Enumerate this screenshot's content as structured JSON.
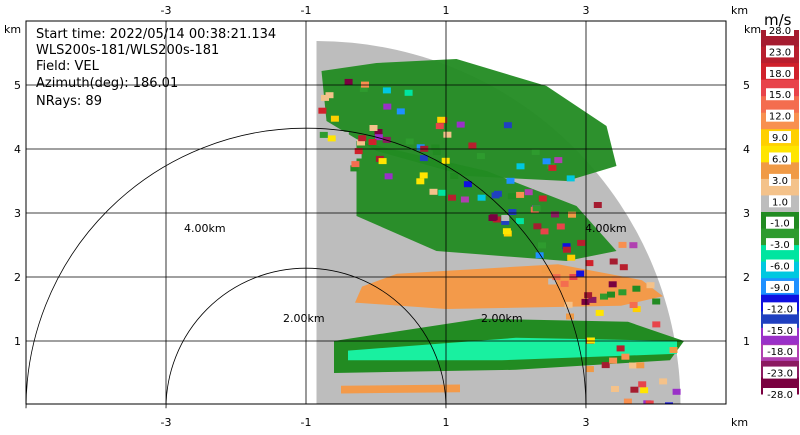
{
  "chart_data": {
    "type": "heatmap",
    "description_lines": [
      "Start time: 2022/05/14 00:38:21.134",
      "WLS200s-181/WLS200s-181",
      "Field: VEL",
      "Azimuth(deg): 186.01",
      "NRays: 89"
    ],
    "axis_unit_label": "km",
    "x_ticks": [
      -3,
      -1,
      1,
      3
    ],
    "y_ticks": [
      1,
      2,
      3,
      4,
      5
    ],
    "xlim": [
      -5.1,
      5.2
    ],
    "ylim": [
      0,
      6.0
    ],
    "grid": true,
    "range_rings": [
      {
        "radius_km": 2.0,
        "label": "2.00km"
      },
      {
        "radius_km": 4.0,
        "label": "4.00km"
      }
    ],
    "ring_label_positions_note": "labels drawn near each ring",
    "colorbar": {
      "unit": "m/s",
      "tick_labels": [
        "28.0",
        "23.0",
        "18.0",
        "15.0",
        "12.0",
        "9.0",
        "6.0",
        "3.0",
        "1.0",
        "-1.0",
        "-3.0",
        "-6.0",
        "-9.0",
        "-12.0",
        "-15.0",
        "-18.0",
        "-23.0",
        "-28.0"
      ],
      "colors": [
        "#a51c30",
        "#b81f2e",
        "#d0212b",
        "#e8434a",
        "#f46d4f",
        "#f89050",
        "#ffd000",
        "#ffe500",
        "#f09a46",
        "#f4c28a",
        "#bdbdbd",
        "#228b22",
        "#2e9b2e",
        "#00e5a0",
        "#00c8e0",
        "#1e90ff",
        "#1010e0",
        "#2040c0",
        "#9a30c8",
        "#b040b0",
        "#8b1a60",
        "#7a0040"
      ]
    },
    "field": "VEL",
    "azimuth_deg": 186.01,
    "n_rays": 89,
    "colors": {
      "gray": "#bdbdbd",
      "green": "#228b22",
      "orange": "#f39a4a",
      "cyan": "#19f0a0"
    }
  }
}
